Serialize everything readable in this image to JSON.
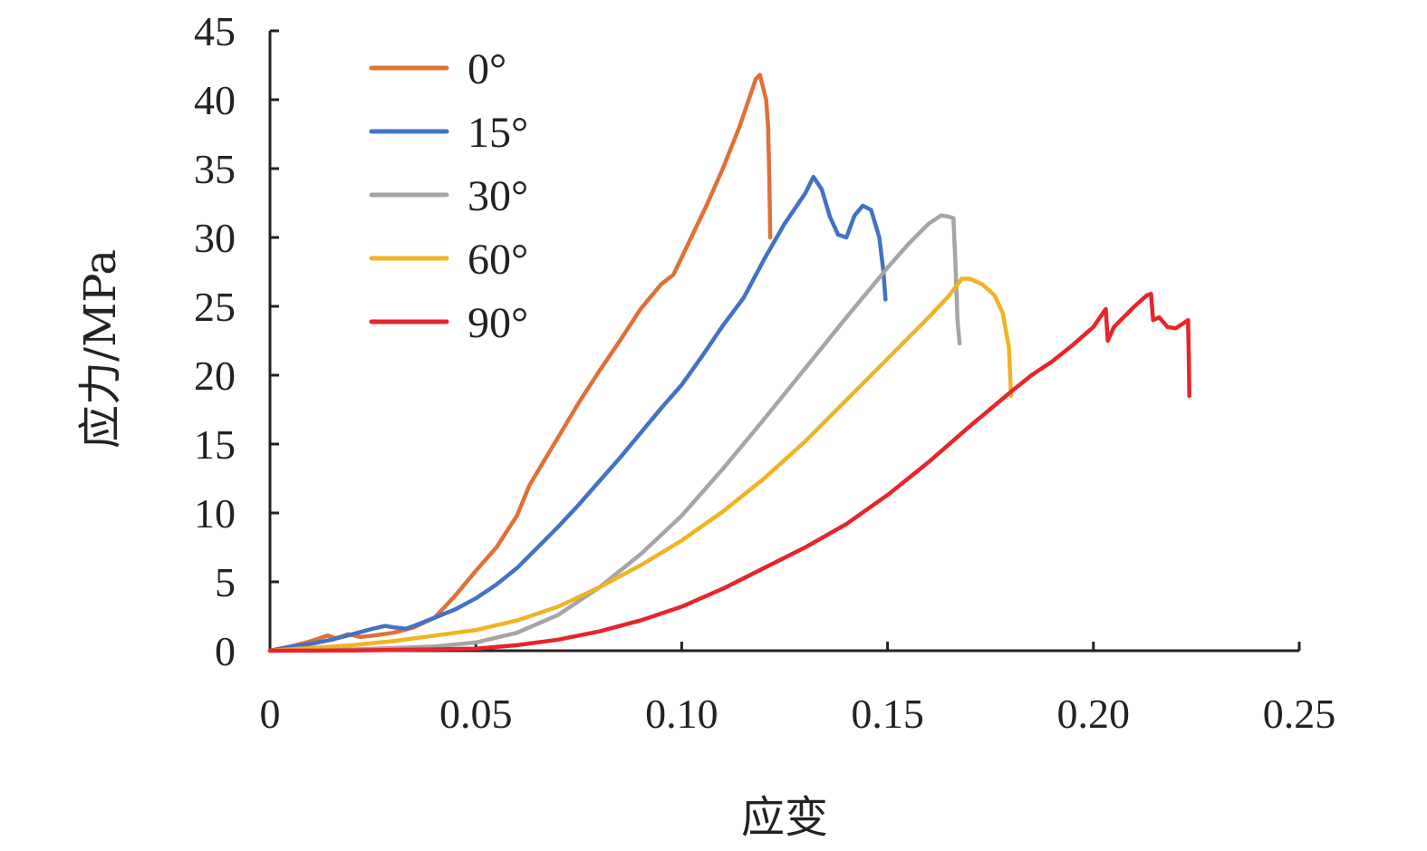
{
  "chart_data": {
    "type": "line",
    "title": "",
    "xlabel": "应变",
    "ylabel": "应力/MPa",
    "xlim": [
      0,
      0.25
    ],
    "ylim": [
      0,
      45
    ],
    "x_ticks": [
      0,
      0.05,
      0.1,
      0.15,
      0.2,
      0.25
    ],
    "x_tick_labels": [
      "0",
      "0.05",
      "0.10",
      "0.15",
      "0.20",
      "0.25"
    ],
    "y_ticks": [
      0,
      5,
      10,
      15,
      20,
      25,
      30,
      35,
      40,
      45
    ],
    "y_tick_labels": [
      "0",
      "5",
      "10",
      "15",
      "20",
      "25",
      "30",
      "35",
      "40",
      "45"
    ],
    "grid": false,
    "legend_position": "top-left",
    "series": [
      {
        "name": "0°",
        "color": "#E07036",
        "points": [
          [
            0,
            0
          ],
          [
            0.005,
            0.3
          ],
          [
            0.01,
            0.7
          ],
          [
            0.014,
            1.1
          ],
          [
            0.016,
            0.9
          ],
          [
            0.019,
            1.2
          ],
          [
            0.022,
            1.0
          ],
          [
            0.025,
            1.1
          ],
          [
            0.03,
            1.3
          ],
          [
            0.035,
            1.7
          ],
          [
            0.04,
            2.4
          ],
          [
            0.045,
            4.0
          ],
          [
            0.05,
            5.8
          ],
          [
            0.055,
            7.5
          ],
          [
            0.06,
            9.8
          ],
          [
            0.063,
            12.0
          ],
          [
            0.066,
            13.5
          ],
          [
            0.07,
            15.5
          ],
          [
            0.075,
            18.0
          ],
          [
            0.08,
            20.3
          ],
          [
            0.085,
            22.5
          ],
          [
            0.09,
            24.8
          ],
          [
            0.095,
            26.6
          ],
          [
            0.098,
            27.3
          ],
          [
            0.102,
            29.8
          ],
          [
            0.106,
            32.3
          ],
          [
            0.11,
            35.0
          ],
          [
            0.114,
            38.0
          ],
          [
            0.118,
            41.5
          ],
          [
            0.119,
            41.8
          ],
          [
            0.1205,
            40.0
          ],
          [
            0.121,
            38.0
          ],
          [
            0.1213,
            34.0
          ],
          [
            0.1215,
            30.0
          ]
        ]
      },
      {
        "name": "15°",
        "color": "#4471C4",
        "points": [
          [
            0,
            0
          ],
          [
            0.005,
            0.3
          ],
          [
            0.01,
            0.5
          ],
          [
            0.015,
            0.8
          ],
          [
            0.02,
            1.2
          ],
          [
            0.025,
            1.6
          ],
          [
            0.028,
            1.8
          ],
          [
            0.03,
            1.7
          ],
          [
            0.033,
            1.6
          ],
          [
            0.035,
            1.8
          ],
          [
            0.04,
            2.4
          ],
          [
            0.045,
            3.0
          ],
          [
            0.05,
            3.8
          ],
          [
            0.055,
            4.8
          ],
          [
            0.06,
            6.0
          ],
          [
            0.065,
            7.5
          ],
          [
            0.07,
            9.0
          ],
          [
            0.075,
            10.6
          ],
          [
            0.08,
            12.3
          ],
          [
            0.085,
            14.0
          ],
          [
            0.09,
            15.8
          ],
          [
            0.095,
            17.6
          ],
          [
            0.1,
            19.3
          ],
          [
            0.105,
            21.4
          ],
          [
            0.11,
            23.6
          ],
          [
            0.115,
            25.6
          ],
          [
            0.12,
            28.4
          ],
          [
            0.125,
            31.0
          ],
          [
            0.13,
            33.2
          ],
          [
            0.132,
            34.4
          ],
          [
            0.134,
            33.5
          ],
          [
            0.136,
            31.5
          ],
          [
            0.138,
            30.2
          ],
          [
            0.14,
            30.0
          ],
          [
            0.142,
            31.6
          ],
          [
            0.144,
            32.3
          ],
          [
            0.146,
            32.0
          ],
          [
            0.148,
            30.0
          ],
          [
            0.149,
            27.5
          ],
          [
            0.1495,
            25.5
          ]
        ]
      },
      {
        "name": "30°",
        "color": "#A5A5A5",
        "points": [
          [
            0,
            0
          ],
          [
            0.01,
            0.05
          ],
          [
            0.02,
            0.1
          ],
          [
            0.03,
            0.2
          ],
          [
            0.04,
            0.3
          ],
          [
            0.05,
            0.6
          ],
          [
            0.06,
            1.3
          ],
          [
            0.07,
            2.6
          ],
          [
            0.08,
            4.6
          ],
          [
            0.09,
            7.0
          ],
          [
            0.1,
            9.8
          ],
          [
            0.11,
            13.2
          ],
          [
            0.12,
            16.8
          ],
          [
            0.13,
            20.5
          ],
          [
            0.14,
            24.2
          ],
          [
            0.15,
            27.8
          ],
          [
            0.155,
            29.5
          ],
          [
            0.16,
            31.0
          ],
          [
            0.163,
            31.6
          ],
          [
            0.165,
            31.5
          ],
          [
            0.166,
            31.4
          ],
          [
            0.1665,
            28.0
          ],
          [
            0.167,
            24.0
          ],
          [
            0.1675,
            22.3
          ]
        ]
      },
      {
        "name": "60°",
        "color": "#F0B323",
        "points": [
          [
            0,
            0
          ],
          [
            0.01,
            0.2
          ],
          [
            0.02,
            0.4
          ],
          [
            0.03,
            0.7
          ],
          [
            0.04,
            1.1
          ],
          [
            0.05,
            1.5
          ],
          [
            0.06,
            2.2
          ],
          [
            0.07,
            3.2
          ],
          [
            0.08,
            4.6
          ],
          [
            0.09,
            6.2
          ],
          [
            0.1,
            8.0
          ],
          [
            0.11,
            10.1
          ],
          [
            0.12,
            12.5
          ],
          [
            0.13,
            15.2
          ],
          [
            0.14,
            18.2
          ],
          [
            0.15,
            21.2
          ],
          [
            0.16,
            24.2
          ],
          [
            0.165,
            25.8
          ],
          [
            0.168,
            27.0
          ],
          [
            0.17,
            27.0
          ],
          [
            0.173,
            26.6
          ],
          [
            0.176,
            25.8
          ],
          [
            0.178,
            24.5
          ],
          [
            0.1795,
            22.0
          ],
          [
            0.18,
            18.5
          ]
        ]
      },
      {
        "name": "90°",
        "color": "#E8242B",
        "points": [
          [
            0,
            0
          ],
          [
            0.02,
            0.02
          ],
          [
            0.04,
            0.1
          ],
          [
            0.05,
            0.15
          ],
          [
            0.06,
            0.4
          ],
          [
            0.07,
            0.8
          ],
          [
            0.08,
            1.4
          ],
          [
            0.09,
            2.2
          ],
          [
            0.1,
            3.2
          ],
          [
            0.11,
            4.5
          ],
          [
            0.12,
            6.0
          ],
          [
            0.13,
            7.5
          ],
          [
            0.14,
            9.2
          ],
          [
            0.15,
            11.3
          ],
          [
            0.16,
            13.7
          ],
          [
            0.17,
            16.3
          ],
          [
            0.18,
            18.8
          ],
          [
            0.185,
            20.0
          ],
          [
            0.19,
            21.0
          ],
          [
            0.195,
            22.2
          ],
          [
            0.2,
            23.5
          ],
          [
            0.203,
            24.8
          ],
          [
            0.2035,
            22.5
          ],
          [
            0.205,
            23.5
          ],
          [
            0.21,
            25.0
          ],
          [
            0.213,
            25.8
          ],
          [
            0.214,
            25.9
          ],
          [
            0.2145,
            24.0
          ],
          [
            0.216,
            24.2
          ],
          [
            0.218,
            23.5
          ],
          [
            0.22,
            23.4
          ],
          [
            0.222,
            23.8
          ],
          [
            0.223,
            24.0
          ],
          [
            0.2232,
            21.0
          ],
          [
            0.2233,
            18.5
          ]
        ]
      }
    ]
  }
}
